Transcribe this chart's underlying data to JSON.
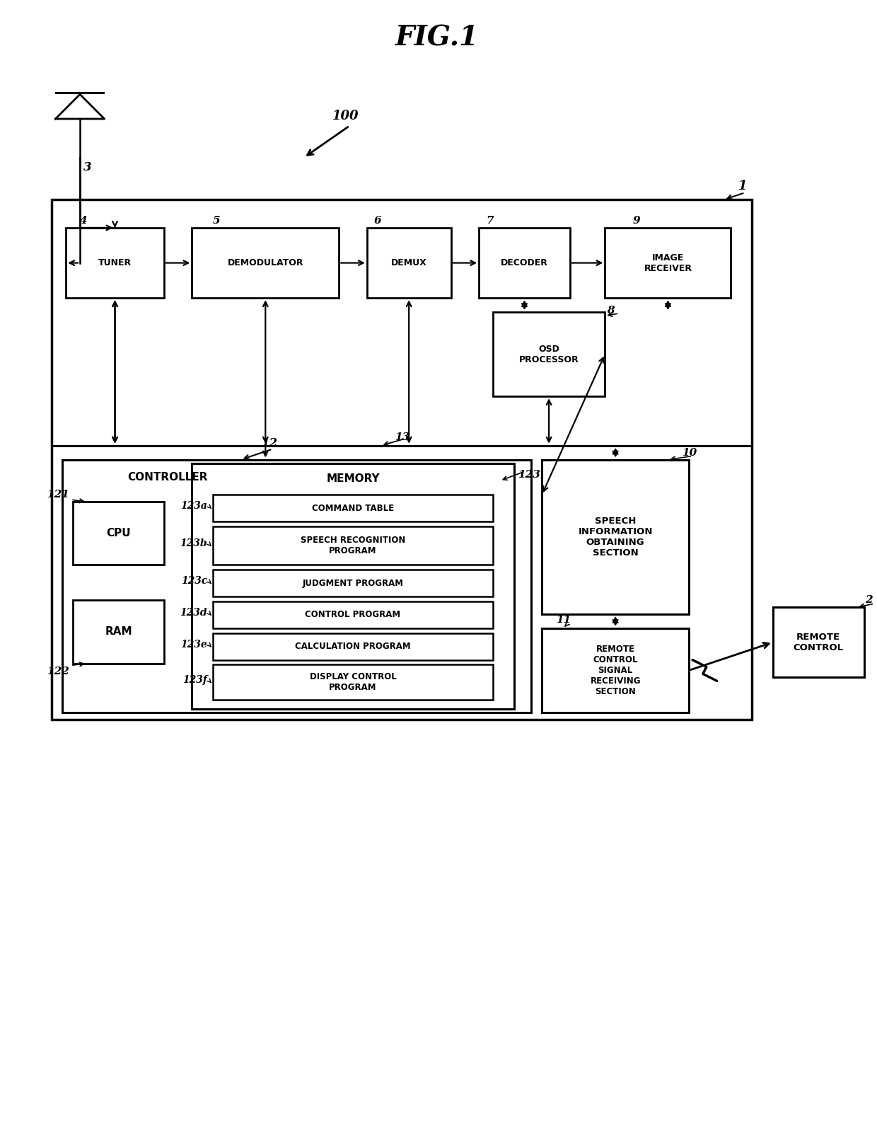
{
  "title": "FIG.1",
  "bg_color": "#ffffff",
  "fig_width": 12.4,
  "fig_height": 15.97,
  "labels": {
    "100": "100",
    "1": "1",
    "2": "2",
    "3": "3",
    "4": "4",
    "5": "5",
    "6": "6",
    "7": "7",
    "8": "8",
    "9": "9",
    "10": "10",
    "11": "11",
    "12": "12",
    "13": "13",
    "121": "121",
    "122": "122",
    "123": "123",
    "123a": "123a",
    "123b": "123b",
    "123c": "123c",
    "123d": "123d",
    "123e": "123e",
    "123f": "123f"
  },
  "texts": {
    "tuner": "TUNER",
    "demodulator": "DEMODULATOR",
    "demux": "DEMUX",
    "decoder": "DECODER",
    "image_receiver": "IMAGE\nRECEIVER",
    "osd": "OSD\nPROCESSOR",
    "controller": "CONTROLLER",
    "cpu": "CPU",
    "ram": "RAM",
    "memory": "MEMORY",
    "cmd_table": "COMMAND TABLE",
    "speech_rec": "SPEECH RECOGNITION\nPROGRAM",
    "judgment": "JUDGMENT PROGRAM",
    "control_prog": "CONTROL PROGRAM",
    "calc_prog": "CALCULATION PROGRAM",
    "disp_ctrl": "DISPLAY CONTROL\nPROGRAM",
    "speech_info": "SPEECH\nINFORMATION\nOBTAINING\nSECTION",
    "rc_signal": "REMOTE\nCONTROL\nSIGNAL\nRECEIVING\nSECTION",
    "remote_ctrl": "REMOTE\nCONTROL"
  }
}
